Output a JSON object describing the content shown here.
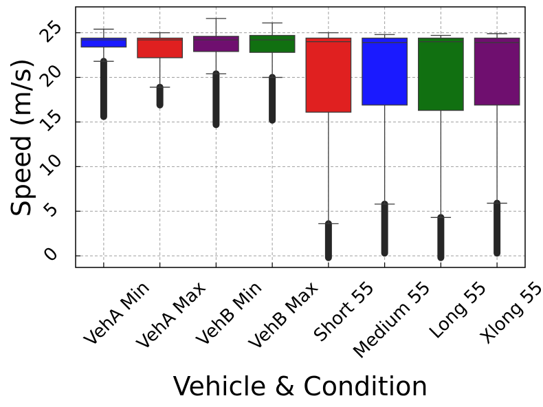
{
  "chart_data": {
    "type": "box",
    "xlabel": "Vehicle & Condition",
    "ylabel": "Speed (m/s)",
    "ylim": [
      -1.3,
      27.9
    ],
    "yticks": [
      0,
      5,
      10,
      15,
      20,
      25
    ],
    "grid": true,
    "categories": [
      "VehA Min",
      "VehA Max",
      "VehB Min",
      "VehB Max",
      "Short 55",
      "Medium 55",
      "Long 55",
      "Xlong 55"
    ],
    "series": [
      {
        "name": "VehA Min",
        "color": "#1a1aff",
        "whisker_low": 21.8,
        "q1": 23.4,
        "median": 24.2,
        "q3": 24.4,
        "whisker_high": 25.4,
        "outliers_low": 15.6,
        "outliers_high": 21.8
      },
      {
        "name": "VehA Max",
        "color": "#e02020",
        "whisker_low": 18.9,
        "q1": 22.2,
        "median": 24.2,
        "q3": 24.4,
        "whisker_high": 25.0,
        "outliers_low": 16.9,
        "outliers_high": 18.9
      },
      {
        "name": "VehB Min",
        "color": "#6f0f6f",
        "whisker_low": 20.4,
        "q1": 22.9,
        "median": 24.2,
        "q3": 24.6,
        "whisker_high": 26.6,
        "outliers_low": 14.7,
        "outliers_high": 20.4
      },
      {
        "name": "VehB Max",
        "color": "#117011",
        "whisker_low": 20.0,
        "q1": 22.8,
        "median": 24.2,
        "q3": 24.7,
        "whisker_high": 26.1,
        "outliers_low": 15.2,
        "outliers_high": 20.0
      },
      {
        "name": "Short 55",
        "color": "#e02020",
        "whisker_low": 3.6,
        "q1": 16.1,
        "median": 24.0,
        "q3": 24.4,
        "whisker_high": 25.0,
        "outliers_low": -0.2,
        "outliers_high": 3.6
      },
      {
        "name": "Medium 55",
        "color": "#1a1aff",
        "whisker_low": 5.8,
        "q1": 16.9,
        "median": 23.9,
        "q3": 24.4,
        "whisker_high": 24.8,
        "outliers_low": 0.3,
        "outliers_high": 5.8
      },
      {
        "name": "Long 55",
        "color": "#117011",
        "whisker_low": 4.3,
        "q1": 16.3,
        "median": 24.0,
        "q3": 24.4,
        "whisker_high": 24.7,
        "outliers_low": -0.2,
        "outliers_high": 4.3
      },
      {
        "name": "Xlong 55",
        "color": "#6f0f6f",
        "whisker_low": 5.9,
        "q1": 16.9,
        "median": 23.9,
        "q3": 24.4,
        "whisker_high": 24.9,
        "outliers_low": 0.3,
        "outliers_high": 5.9
      }
    ]
  }
}
